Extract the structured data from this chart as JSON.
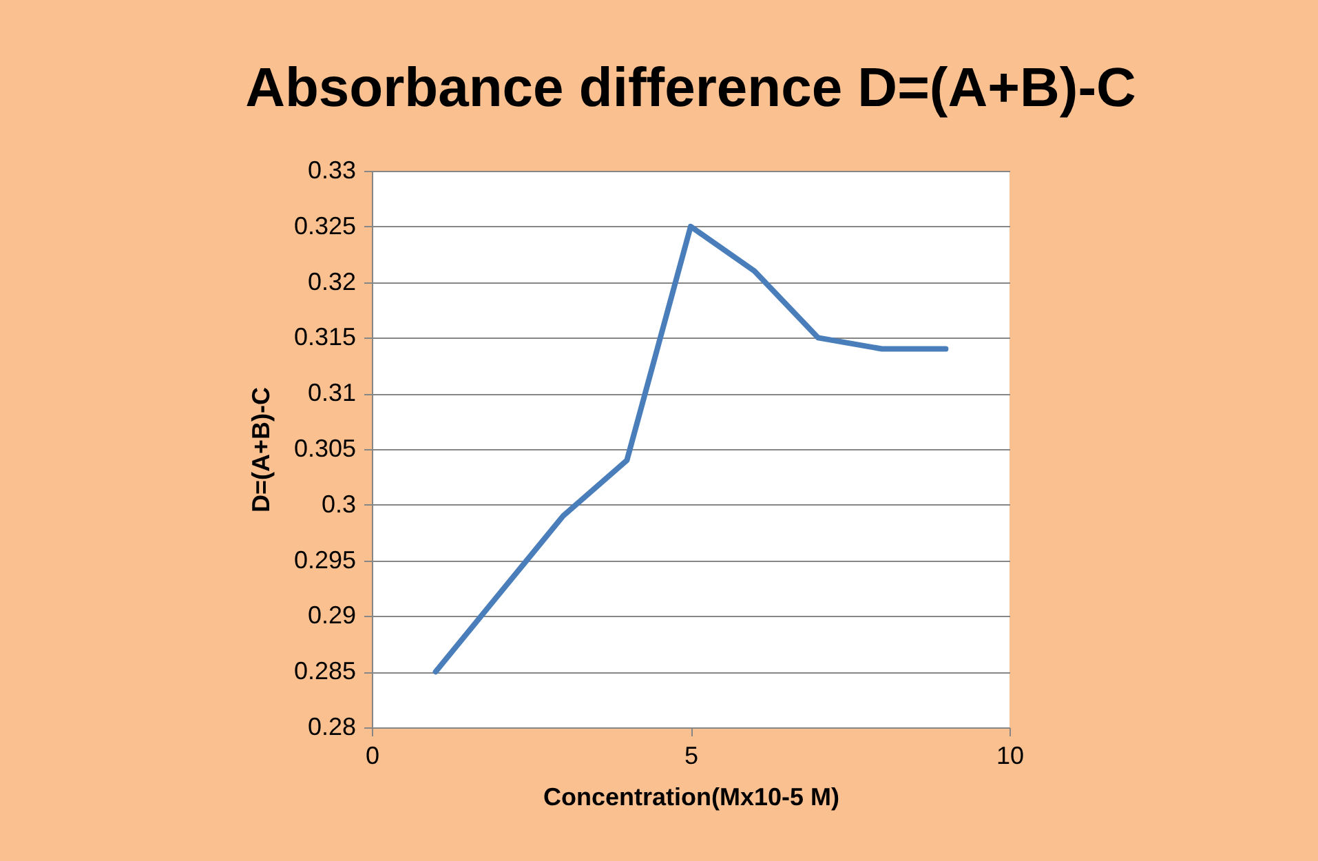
{
  "chart_data": {
    "type": "line",
    "title": "Absorbance difference D=(A+B)-C",
    "xlabel": "Concentration(Mx10-5 M)",
    "ylabel": "D=(A+B)-C",
    "x": [
      1,
      2,
      3,
      4,
      5,
      6,
      7,
      8,
      9
    ],
    "series": [
      {
        "color": "#4a7ebb",
        "values": [
          0.285,
          0.292,
          0.299,
          0.304,
          0.325,
          0.321,
          0.315,
          0.314,
          0.314
        ]
      }
    ],
    "xlim": [
      0,
      10
    ],
    "xticks": [
      0,
      5,
      10
    ],
    "ylim": [
      0.28,
      0.33
    ],
    "yticks": [
      0.28,
      0.285,
      0.29,
      0.295,
      0.3,
      0.305,
      0.31,
      0.315,
      0.32,
      0.325,
      0.33
    ],
    "grid": "y",
    "marker": "none",
    "line_style": "solid"
  }
}
